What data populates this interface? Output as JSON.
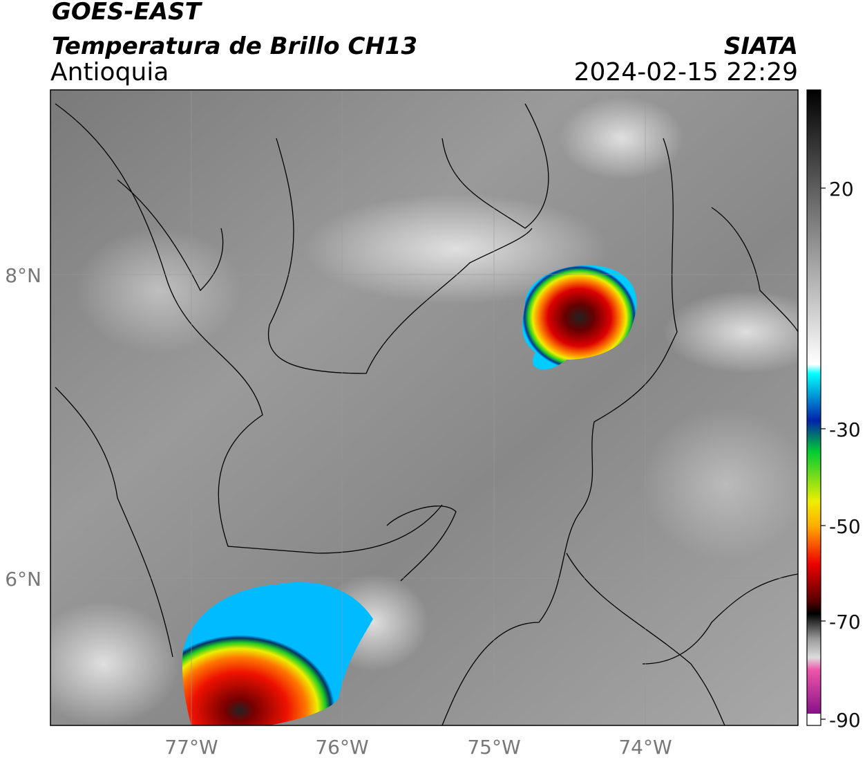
{
  "header": {
    "satellite": "GOES-EAST",
    "product": "Temperatura de Brillo CH13",
    "region": "Antioquia",
    "source": "SIATA",
    "datetime": "2024-02-15 22:29"
  },
  "map": {
    "lat_labels": [
      "8°N",
      "6°N"
    ],
    "lon_labels": [
      "77°W",
      "76°W",
      "75°W",
      "74°W"
    ]
  },
  "colorbar": {
    "ticks": [
      "20",
      "-30",
      "-50",
      "-70",
      "-90"
    ]
  }
}
